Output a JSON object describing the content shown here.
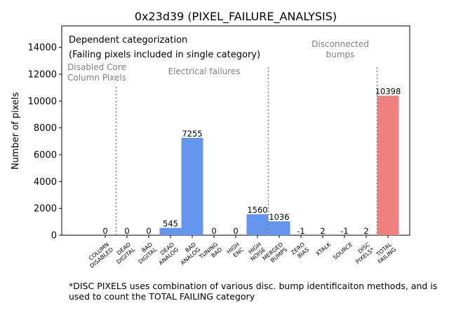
{
  "chart_data": {
    "type": "bar",
    "title": "0x23d39 (PIXEL_FAILURE_ANALYSIS)",
    "xlabel": "",
    "ylabel": "Number of pixels",
    "ylim": [
      0,
      15600
    ],
    "yticks": [
      0,
      2000,
      4000,
      6000,
      8000,
      10000,
      12000,
      14000
    ],
    "categories": [
      [
        "COLUMN",
        "DISABLED"
      ],
      [
        "DEAD",
        "DIGITAL"
      ],
      [
        "BAD",
        "DIGITAL"
      ],
      [
        "DEAD",
        "ANALOG"
      ],
      [
        "BAD",
        "ANALOG"
      ],
      [
        "TUNING",
        "BAD"
      ],
      [
        "HIGH",
        "ENC"
      ],
      [
        "HIGH",
        "NOISE"
      ],
      [
        "MERGED",
        "BUMPS"
      ],
      [
        "ZERO",
        "BIAS"
      ],
      [
        "XTALK"
      ],
      [
        "SOURCE"
      ],
      [
        "DISC",
        "PIXELS*"
      ],
      [
        "TOTAL",
        "FAILING"
      ]
    ],
    "values": [
      0,
      0,
      0,
      545,
      7255,
      0,
      0,
      1560,
      1036,
      -1,
      2,
      -1,
      2,
      10398
    ],
    "value_labels": [
      "0",
      "0",
      "0",
      "545",
      "7255",
      "0",
      "0",
      "1560",
      "1036",
      "-1",
      "2",
      "-1",
      "2",
      "10398"
    ],
    "colors": {
      "normal": "#6495ED",
      "total": "#F08080",
      "divider": "#808080",
      "group_label": "#808080"
    },
    "legend_box": {
      "line1": "Dependent categorization",
      "line2": "(Failing pixels included in single category)"
    },
    "groups": [
      {
        "label": [
          "Disabled Core",
          "Column Pixels"
        ],
        "divider_after_index": 0
      },
      {
        "label": [
          "Electrical failures"
        ],
        "divider_after_index": 7
      },
      {
        "label": [
          "Disconnected",
          "bumps"
        ],
        "divider_after_index": 12
      }
    ]
  },
  "footnote": "*DISC PIXELS uses combination of various disc. bump identificaiton methods, and is used to count the TOTAL FAILING category"
}
